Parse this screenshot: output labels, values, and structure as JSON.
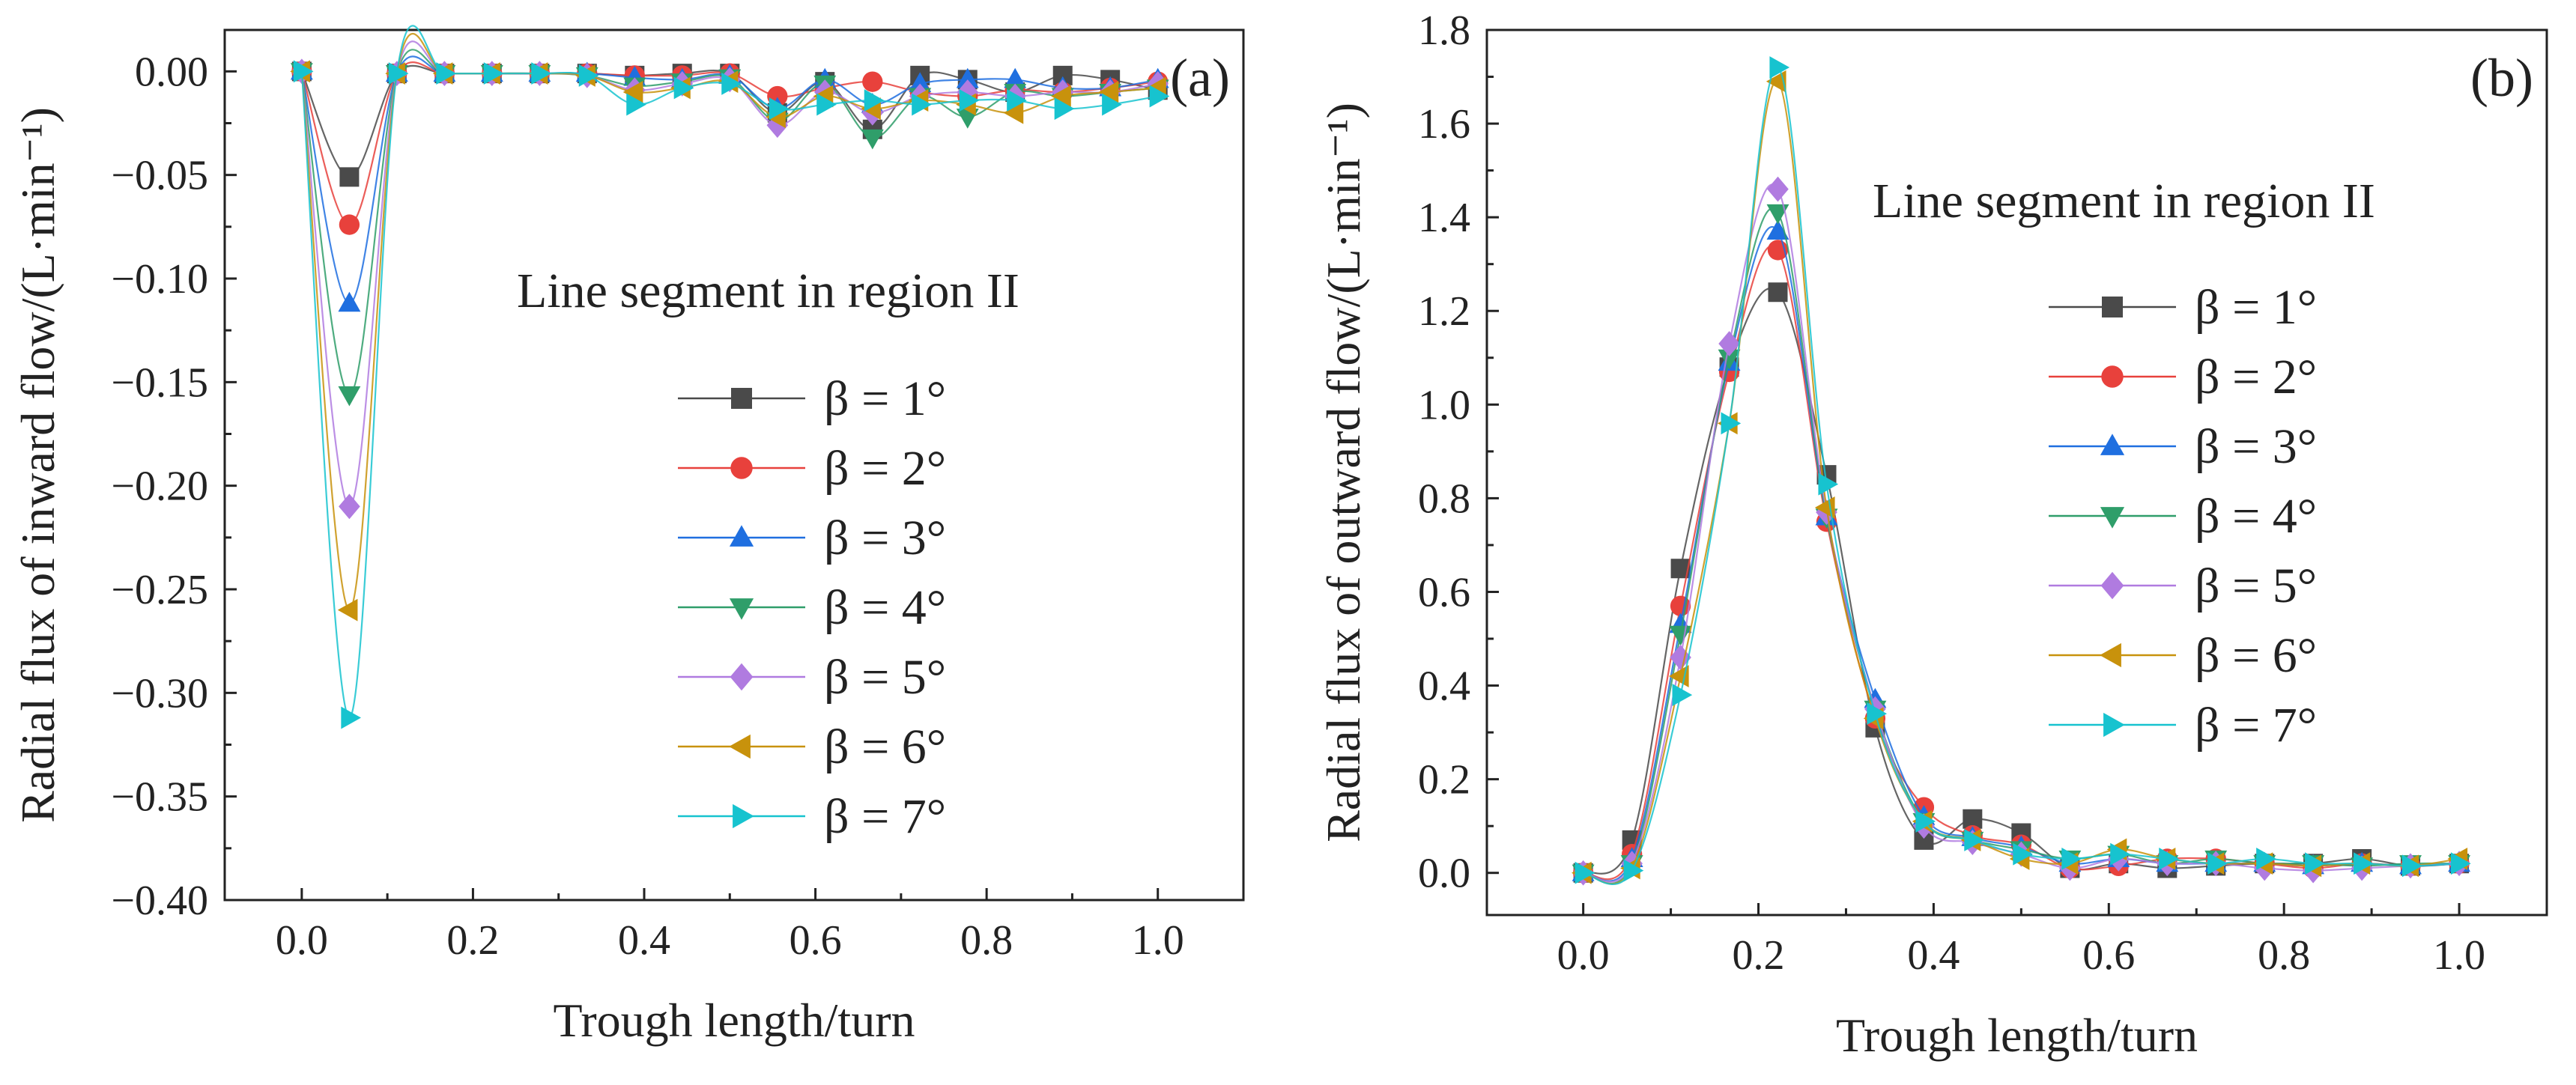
{
  "colors": {
    "beta1": "#4a4a4a",
    "beta2": "#e8413c",
    "beta3": "#1f6fe0",
    "beta4": "#2f9e6a",
    "beta5": "#b07be0",
    "beta6": "#c8920c",
    "beta7": "#17c3cf"
  },
  "chart_data": [
    {
      "type": "line",
      "panel_label": "(a)",
      "legend_title": "Line segment in region II",
      "xlabel": "Trough length/turn",
      "ylabel": "Radial flux of inward flow/(L·min⁻¹)",
      "xlim": [
        -0.09,
        1.1
      ],
      "ylim": [
        -0.4,
        0.02
      ],
      "xticks": [
        "0.0",
        "0.2",
        "0.4",
        "0.6",
        "0.8",
        "1.0"
      ],
      "yticks": [
        "0.00",
        "−0.05",
        "−0.10",
        "−0.15",
        "−0.20",
        "−0.25",
        "−0.30",
        "−0.35",
        "−0.40"
      ],
      "x": [
        0,
        0.0556,
        0.1111,
        0.1667,
        0.2222,
        0.2778,
        0.3333,
        0.3889,
        0.4444,
        0.5,
        0.5556,
        0.6111,
        0.6667,
        0.7222,
        0.7778,
        0.8333,
        0.8889,
        0.9444,
        1.0
      ],
      "series": [
        {
          "name": "β = 1°",
          "marker": "square",
          "values": [
            0,
            -0.051,
            -0.001,
            -0.001,
            -0.001,
            -0.001,
            -0.001,
            -0.002,
            -0.001,
            -0.001,
            -0.02,
            -0.005,
            -0.028,
            -0.002,
            -0.004,
            -0.01,
            -0.002,
            -0.004,
            -0.009
          ]
        },
        {
          "name": "β = 2°",
          "marker": "circle",
          "values": [
            0,
            -0.074,
            -0.001,
            -0.001,
            -0.001,
            -0.001,
            -0.001,
            -0.002,
            -0.002,
            -0.001,
            -0.012,
            -0.008,
            -0.005,
            -0.01,
            -0.012,
            -0.009,
            -0.01,
            -0.008,
            -0.005
          ]
        },
        {
          "name": "β = 3°",
          "marker": "triangle-up",
          "values": [
            0,
            -0.112,
            -0.001,
            -0.001,
            -0.001,
            -0.001,
            -0.001,
            -0.003,
            -0.004,
            -0.002,
            -0.018,
            -0.004,
            -0.016,
            -0.006,
            -0.004,
            -0.004,
            -0.008,
            -0.008,
            -0.004
          ]
        },
        {
          "name": "β = 4°",
          "marker": "triangle-down",
          "values": [
            0,
            -0.156,
            -0.001,
            -0.001,
            -0.001,
            -0.001,
            -0.002,
            -0.007,
            -0.005,
            -0.003,
            -0.024,
            -0.006,
            -0.032,
            -0.012,
            -0.022,
            -0.01,
            -0.012,
            -0.01,
            -0.008
          ]
        },
        {
          "name": "β = 5°",
          "marker": "diamond",
          "values": [
            0,
            -0.21,
            -0.001,
            -0.001,
            -0.001,
            -0.001,
            -0.002,
            -0.009,
            -0.006,
            -0.004,
            -0.026,
            -0.01,
            -0.02,
            -0.012,
            -0.01,
            -0.012,
            -0.01,
            -0.01,
            -0.006
          ]
        },
        {
          "name": "β = 6°",
          "marker": "triangle-left",
          "values": [
            0,
            -0.26,
            -0.001,
            -0.001,
            -0.001,
            -0.001,
            -0.002,
            -0.01,
            -0.008,
            -0.005,
            -0.022,
            -0.012,
            -0.018,
            -0.014,
            -0.016,
            -0.02,
            -0.012,
            -0.01,
            -0.008
          ]
        },
        {
          "name": "β = 7°",
          "marker": "triangle-right",
          "values": [
            0,
            -0.312,
            -0.001,
            -0.001,
            -0.001,
            -0.001,
            -0.002,
            -0.016,
            -0.008,
            -0.006,
            -0.018,
            -0.016,
            -0.014,
            -0.016,
            -0.014,
            -0.014,
            -0.018,
            -0.016,
            -0.012
          ]
        }
      ]
    },
    {
      "type": "line",
      "panel_label": "(b)",
      "legend_title": "Line segment in region II",
      "xlabel": "Trough length/turn",
      "ylabel": "Radial flux of outward flow/(L·min⁻¹)",
      "xlim": [
        -0.11,
        1.1
      ],
      "ylim": [
        -0.09,
        1.8
      ],
      "xticks": [
        "0.0",
        "0.2",
        "0.4",
        "0.6",
        "0.8",
        "1.0"
      ],
      "yticks": [
        "0.0",
        "0.2",
        "0.4",
        "0.6",
        "0.8",
        "1.0",
        "1.2",
        "1.4",
        "1.6",
        "1.8"
      ],
      "x": [
        0,
        0.0556,
        0.1111,
        0.1667,
        0.2222,
        0.2778,
        0.3333,
        0.3889,
        0.4444,
        0.5,
        0.5556,
        0.6111,
        0.6667,
        0.7222,
        0.7778,
        0.8333,
        0.8889,
        0.9444,
        1.0
      ],
      "series": [
        {
          "name": "β = 1°",
          "marker": "square",
          "values": [
            0,
            0.07,
            0.65,
            1.08,
            1.24,
            0.85,
            0.31,
            0.07,
            0.115,
            0.085,
            0.01,
            0.02,
            0.01,
            0.015,
            0.02,
            0.02,
            0.03,
            0.015,
            0.02
          ]
        },
        {
          "name": "β = 2°",
          "marker": "circle",
          "values": [
            0,
            0.04,
            0.57,
            1.07,
            1.33,
            0.75,
            0.33,
            0.14,
            0.08,
            0.06,
            0.01,
            0.015,
            0.03,
            0.03,
            0.02,
            0.01,
            0.02,
            0.015,
            0.02
          ]
        },
        {
          "name": "β = 3°",
          "marker": "triangle-up",
          "values": [
            0,
            0.03,
            0.53,
            1.09,
            1.37,
            0.76,
            0.37,
            0.12,
            0.075,
            0.055,
            0.02,
            0.03,
            0.02,
            0.02,
            0.02,
            0.015,
            0.02,
            0.015,
            0.02
          ]
        },
        {
          "name": "β = 4°",
          "marker": "triangle-down",
          "values": [
            0,
            0.02,
            0.51,
            1.1,
            1.41,
            0.76,
            0.35,
            0.11,
            0.07,
            0.05,
            0.03,
            0.04,
            0.02,
            0.03,
            0.02,
            0.02,
            0.015,
            0.02,
            0.02
          ]
        },
        {
          "name": "β = 5°",
          "marker": "diamond",
          "values": [
            0,
            0.02,
            0.46,
            1.13,
            1.46,
            0.77,
            0.35,
            0.1,
            0.065,
            0.04,
            0.01,
            0.03,
            0.02,
            0.02,
            0.01,
            0.005,
            0.01,
            0.015,
            0.02
          ]
        },
        {
          "name": "β = 6°",
          "marker": "triangle-left",
          "values": [
            0,
            0.01,
            0.42,
            0.96,
            1.69,
            0.78,
            0.33,
            0.11,
            0.07,
            0.03,
            0.02,
            0.05,
            0.03,
            0.02,
            0.02,
            0.015,
            0.02,
            0.015,
            0.03
          ]
        },
        {
          "name": "β = 7°",
          "marker": "triangle-right",
          "values": [
            0,
            0.005,
            0.38,
            0.96,
            1.72,
            0.83,
            0.34,
            0.11,
            0.07,
            0.04,
            0.03,
            0.04,
            0.03,
            0.02,
            0.03,
            0.02,
            0.02,
            0.015,
            0.02
          ]
        }
      ]
    }
  ]
}
